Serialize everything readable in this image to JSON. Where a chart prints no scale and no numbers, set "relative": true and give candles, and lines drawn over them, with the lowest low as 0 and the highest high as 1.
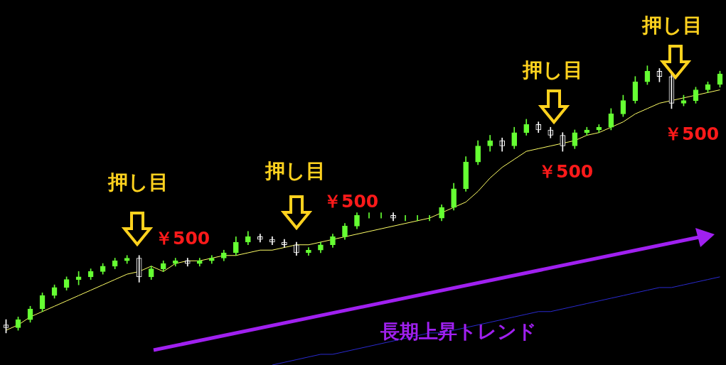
{
  "chart_data": {
    "type": "candlestick",
    "relative": true,
    "legend": false,
    "marker": "none",
    "colors": [
      "#ffffff",
      "#66ff33",
      "#66ff33",
      "#66ff33",
      "#66ff33",
      "#66ff33",
      "#66ff33",
      "#66ff33",
      "#66ff33",
      "#66ff33",
      "#66ff33",
      "#ffffff",
      "#66ff33",
      "#66ff33",
      "#66ff33",
      "#ffffff",
      "#66ff33",
      "#66ff33",
      "#66ff33",
      "#66ff33",
      "#66ff33",
      "#ffffff",
      "#ffffff",
      "#ffffff",
      "#ffffff",
      "#66ff33",
      "#66ff33",
      "#66ff33",
      "#66ff33",
      "#66ff33",
      "#66ff33",
      "#66ff33",
      "#ffffff",
      "#66ff33",
      "#66ff33",
      "#66ff33",
      "#66ff33",
      "#66ff33",
      "#66ff33",
      "#66ff33",
      "#66ff33",
      "#ffffff",
      "#66ff33",
      "#66ff33",
      "#ffffff",
      "#ffffff",
      "#ffffff",
      "#66ff33",
      "#66ff33",
      "#66ff33",
      "#66ff33",
      "#66ff33",
      "#66ff33",
      "#66ff33",
      "#ffffff",
      "#ffffff",
      "#66ff33",
      "#66ff33",
      "#66ff33",
      "#66ff33"
    ],
    "categories": [
      null,
      null,
      null,
      null,
      null,
      null,
      null,
      null,
      null,
      null,
      null,
      null,
      null,
      null,
      null,
      null,
      null,
      null,
      null,
      null,
      null,
      null,
      null,
      null,
      null,
      null,
      null,
      null,
      null,
      null,
      null,
      null,
      null,
      null,
      null,
      null,
      null,
      null,
      null,
      null,
      null,
      null,
      null,
      null,
      null,
      null,
      null,
      null,
      null,
      null,
      null,
      null,
      null,
      null,
      null,
      null,
      null,
      null,
      null,
      null
    ],
    "ohlc": [
      [
        0.03,
        0.05,
        0.0,
        0.02
      ],
      [
        0.02,
        0.06,
        0.01,
        0.05
      ],
      [
        0.05,
        0.1,
        0.04,
        0.09
      ],
      [
        0.09,
        0.15,
        0.08,
        0.14
      ],
      [
        0.14,
        0.18,
        0.13,
        0.17
      ],
      [
        0.17,
        0.21,
        0.16,
        0.2
      ],
      [
        0.2,
        0.23,
        0.18,
        0.21
      ],
      [
        0.21,
        0.24,
        0.2,
        0.23
      ],
      [
        0.23,
        0.26,
        0.22,
        0.25
      ],
      [
        0.25,
        0.28,
        0.24,
        0.27
      ],
      [
        0.27,
        0.29,
        0.26,
        0.28
      ],
      [
        0.28,
        0.29,
        0.19,
        0.21
      ],
      [
        0.21,
        0.25,
        0.2,
        0.24
      ],
      [
        0.24,
        0.27,
        0.23,
        0.26
      ],
      [
        0.26,
        0.28,
        0.25,
        0.27
      ],
      [
        0.27,
        0.28,
        0.25,
        0.26
      ],
      [
        0.26,
        0.28,
        0.25,
        0.27
      ],
      [
        0.27,
        0.29,
        0.26,
        0.28
      ],
      [
        0.28,
        0.31,
        0.27,
        0.3
      ],
      [
        0.3,
        0.36,
        0.29,
        0.34
      ],
      [
        0.34,
        0.38,
        0.33,
        0.36
      ],
      [
        0.36,
        0.37,
        0.34,
        0.35
      ],
      [
        0.35,
        0.36,
        0.33,
        0.34
      ],
      [
        0.34,
        0.35,
        0.32,
        0.33
      ],
      [
        0.33,
        0.34,
        0.29,
        0.3
      ],
      [
        0.3,
        0.32,
        0.29,
        0.31
      ],
      [
        0.31,
        0.34,
        0.3,
        0.33
      ],
      [
        0.33,
        0.37,
        0.32,
        0.36
      ],
      [
        0.36,
        0.41,
        0.35,
        0.4
      ],
      [
        0.4,
        0.45,
        0.39,
        0.44
      ],
      [
        0.44,
        0.45,
        0.43,
        0.44
      ],
      [
        0.44,
        0.45,
        0.43,
        0.44
      ],
      [
        0.44,
        0.45,
        0.42,
        0.43
      ],
      [
        0.43,
        0.44,
        0.42,
        0.43
      ],
      [
        0.43,
        0.44,
        0.42,
        0.43
      ],
      [
        0.43,
        0.44,
        0.42,
        0.43
      ],
      [
        0.43,
        0.48,
        0.42,
        0.47
      ],
      [
        0.47,
        0.56,
        0.46,
        0.54
      ],
      [
        0.54,
        0.66,
        0.53,
        0.64
      ],
      [
        0.64,
        0.72,
        0.63,
        0.7
      ],
      [
        0.7,
        0.74,
        0.68,
        0.72
      ],
      [
        0.72,
        0.73,
        0.68,
        0.7
      ],
      [
        0.7,
        0.77,
        0.69,
        0.75
      ],
      [
        0.75,
        0.8,
        0.74,
        0.78
      ],
      [
        0.78,
        0.79,
        0.75,
        0.76
      ],
      [
        0.76,
        0.77,
        0.73,
        0.74
      ],
      [
        0.74,
        0.75,
        0.68,
        0.7
      ],
      [
        0.7,
        0.76,
        0.69,
        0.75
      ],
      [
        0.75,
        0.77,
        0.74,
        0.76
      ],
      [
        0.76,
        0.78,
        0.75,
        0.77
      ],
      [
        0.77,
        0.84,
        0.76,
        0.82
      ],
      [
        0.82,
        0.89,
        0.81,
        0.87
      ],
      [
        0.87,
        0.96,
        0.86,
        0.94
      ],
      [
        0.94,
        1.0,
        0.93,
        0.98
      ],
      [
        0.98,
        0.99,
        0.94,
        0.96
      ],
      [
        0.96,
        0.97,
        0.84,
        0.86
      ],
      [
        0.86,
        0.89,
        0.85,
        0.87
      ],
      [
        0.87,
        0.92,
        0.86,
        0.91
      ],
      [
        0.91,
        0.94,
        0.9,
        0.93
      ],
      [
        0.93,
        0.98,
        0.92,
        0.97
      ]
    ],
    "series": [
      {
        "type": "line",
        "color": "#ffff66",
        "values": [
          0.01,
          0.03,
          0.06,
          0.08,
          0.1,
          0.12,
          0.14,
          0.16,
          0.18,
          0.2,
          0.22,
          0.23,
          0.25,
          0.23,
          0.26,
          0.27,
          0.27,
          0.28,
          0.29,
          0.29,
          0.3,
          0.31,
          0.31,
          0.32,
          0.33,
          0.33,
          0.34,
          0.35,
          0.36,
          0.37,
          0.38,
          0.39,
          0.4,
          0.41,
          0.42,
          0.43,
          0.45,
          0.47,
          0.49,
          0.53,
          0.58,
          0.62,
          0.65,
          0.68,
          0.69,
          0.7,
          0.71,
          0.72,
          0.74,
          0.75,
          0.77,
          0.79,
          0.82,
          0.84,
          0.86,
          0.87,
          0.88,
          0.89,
          0.9,
          0.91
        ]
      },
      {
        "type": "line",
        "color": "#2a2ad0",
        "values": [
          null,
          null,
          null,
          null,
          null,
          null,
          null,
          null,
          null,
          null,
          null,
          null,
          null,
          null,
          null,
          null,
          null,
          null,
          null,
          null,
          null,
          null,
          -0.12,
          -0.11,
          -0.1,
          -0.09,
          -0.08,
          -0.08,
          -0.07,
          -0.06,
          -0.05,
          -0.04,
          -0.03,
          -0.02,
          -0.01,
          0.0,
          0.0,
          0.01,
          0.02,
          0.03,
          0.04,
          0.05,
          0.06,
          0.07,
          0.08,
          0.08,
          0.09,
          0.1,
          0.11,
          0.12,
          0.13,
          0.14,
          0.15,
          0.16,
          0.17,
          0.17,
          0.18,
          0.19,
          0.2,
          0.21
        ]
      }
    ],
    "annotations": [
      "押し目",
      "￥500",
      "押し目",
      "￥500",
      "押し目",
      "￥500",
      "押し目",
      "￥500",
      "長期上昇トレンド"
    ]
  }
}
